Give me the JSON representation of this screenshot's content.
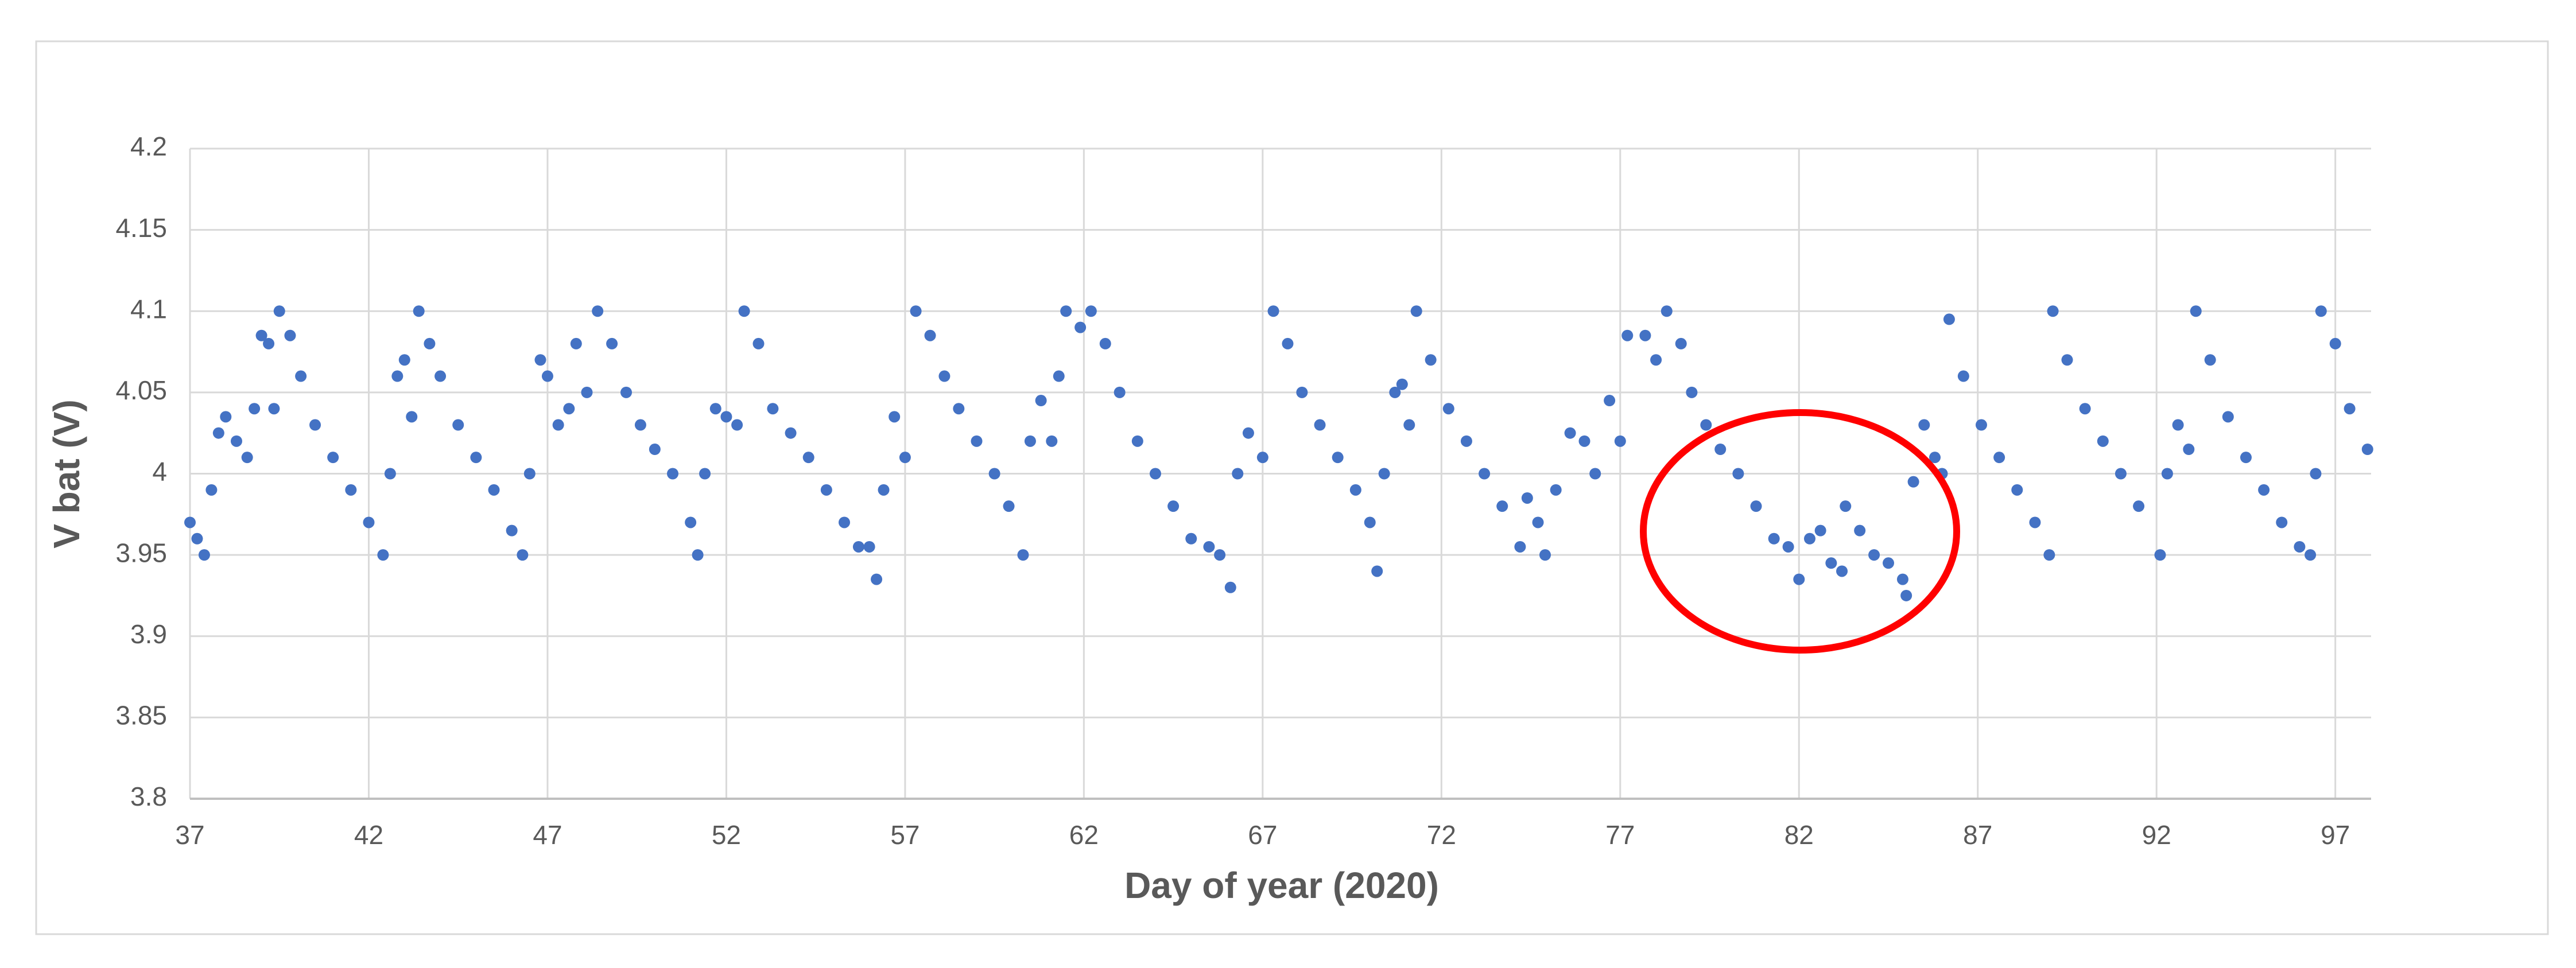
{
  "chart_data": {
    "type": "scatter",
    "x_label": "Day of year (2020)",
    "y_label": "V bat (V)",
    "xlim": [
      37,
      98
    ],
    "xticks": [
      37,
      42,
      47,
      52,
      57,
      62,
      67,
      72,
      77,
      82,
      87,
      92,
      97
    ],
    "ylim": [
      3.8,
      4.2
    ],
    "yticks": [
      3.8,
      3.85,
      3.9,
      3.95,
      4,
      4.05,
      4.1,
      4.15,
      4.2
    ],
    "grid": true,
    "color": "#4472c4",
    "x": [
      37.0,
      37.2,
      37.4,
      37.6,
      37.8,
      38.0,
      38.3,
      38.6,
      38.8,
      39.0,
      39.2,
      39.35,
      39.5,
      39.8,
      40.1,
      40.5,
      41.0,
      41.5,
      42.0,
      42.4,
      42.6,
      42.8,
      43.0,
      43.2,
      43.4,
      43.7,
      44.0,
      44.5,
      45.0,
      45.5,
      46.0,
      46.3,
      46.5,
      46.8,
      47.0,
      47.3,
      47.6,
      47.8,
      48.1,
      48.4,
      48.8,
      49.2,
      49.6,
      50.0,
      50.5,
      51.0,
      51.2,
      51.4,
      51.7,
      52.0,
      52.3,
      52.5,
      52.9,
      53.3,
      53.8,
      54.3,
      54.8,
      55.3,
      55.7,
      56.0,
      56.2,
      56.4,
      56.7,
      57.0,
      57.3,
      57.7,
      58.1,
      58.5,
      59.0,
      59.5,
      59.9,
      60.3,
      60.5,
      60.8,
      61.1,
      61.3,
      61.5,
      61.9,
      62.2,
      62.6,
      63.0,
      63.5,
      64.0,
      64.5,
      65.0,
      65.5,
      65.8,
      66.1,
      66.3,
      66.6,
      67.0,
      67.3,
      67.7,
      68.1,
      68.6,
      69.1,
      69.6,
      70.0,
      70.2,
      70.4,
      70.7,
      70.9,
      71.1,
      71.3,
      71.7,
      72.2,
      72.7,
      73.2,
      73.7,
      74.2,
      74.4,
      74.7,
      74.9,
      75.2,
      75.6,
      76.0,
      76.3,
      76.7,
      77.0,
      77.2,
      77.7,
      78.0,
      78.3,
      78.7,
      79.0,
      79.4,
      79.8,
      80.3,
      80.8,
      81.3,
      81.7,
      82.0,
      82.3,
      82.6,
      82.9,
      83.2,
      83.3,
      83.7,
      84.1,
      84.5,
      84.9,
      85.0,
      85.2,
      85.5,
      85.8,
      86.0,
      86.2,
      86.6,
      87.1,
      87.6,
      88.1,
      88.6,
      89.0,
      89.1,
      89.5,
      90.0,
      90.5,
      91.0,
      91.5,
      92.1,
      92.3,
      92.6,
      92.9,
      93.1,
      93.5,
      94.0,
      94.5,
      95.0,
      95.5,
      96.0,
      96.3,
      96.45,
      96.6,
      97.0,
      97.4,
      97.9
    ],
    "values": [
      3.97,
      3.96,
      3.95,
      3.99,
      4.025,
      4.035,
      4.02,
      4.01,
      4.04,
      4.085,
      4.08,
      4.04,
      4.1,
      4.085,
      4.06,
      4.03,
      4.01,
      3.99,
      3.97,
      3.95,
      4.0,
      4.06,
      4.07,
      4.035,
      4.1,
      4.08,
      4.06,
      4.03,
      4.01,
      3.99,
      3.965,
      3.95,
      4.0,
      4.07,
      4.06,
      4.03,
      4.04,
      4.08,
      4.05,
      4.1,
      4.08,
      4.05,
      4.03,
      4.015,
      4.0,
      3.97,
      3.95,
      4.0,
      4.04,
      4.035,
      4.03,
      4.1,
      4.08,
      4.04,
      4.025,
      4.01,
      3.99,
      3.97,
      3.955,
      3.955,
      3.935,
      3.99,
      4.035,
      4.01,
      4.1,
      4.085,
      4.06,
      4.04,
      4.02,
      4.0,
      3.98,
      3.95,
      4.02,
      4.045,
      4.02,
      4.06,
      4.1,
      4.09,
      4.1,
      4.08,
      4.05,
      4.02,
      4.0,
      3.98,
      3.96,
      3.955,
      3.95,
      3.93,
      4.0,
      4.025,
      4.01,
      4.1,
      4.08,
      4.05,
      4.03,
      4.01,
      3.99,
      3.97,
      3.94,
      4.0,
      4.05,
      4.055,
      4.03,
      4.1,
      4.07,
      4.04,
      4.02,
      4.0,
      3.98,
      3.955,
      3.985,
      3.97,
      3.95,
      3.99,
      4.025,
      4.02,
      4.0,
      4.045,
      4.02,
      4.085,
      4.085,
      4.07,
      4.1,
      4.08,
      4.05,
      4.03,
      4.015,
      4.0,
      3.98,
      3.96,
      3.955,
      3.935,
      3.96,
      3.965,
      3.945,
      3.94,
      3.98,
      3.965,
      3.95,
      3.945,
      3.935,
      3.925,
      3.995,
      4.03,
      4.01,
      4.0,
      4.095,
      4.06,
      4.03,
      4.01,
      3.99,
      3.97,
      3.95,
      4.1,
      4.07,
      4.04,
      4.02,
      4.0,
      3.98,
      3.95,
      4.0,
      4.03,
      4.015,
      4.1,
      4.07,
      4.035,
      4.01,
      3.99,
      3.97,
      3.955,
      3.95,
      4.0,
      4.1,
      4.08,
      4.04,
      4.015
    ]
  }
}
